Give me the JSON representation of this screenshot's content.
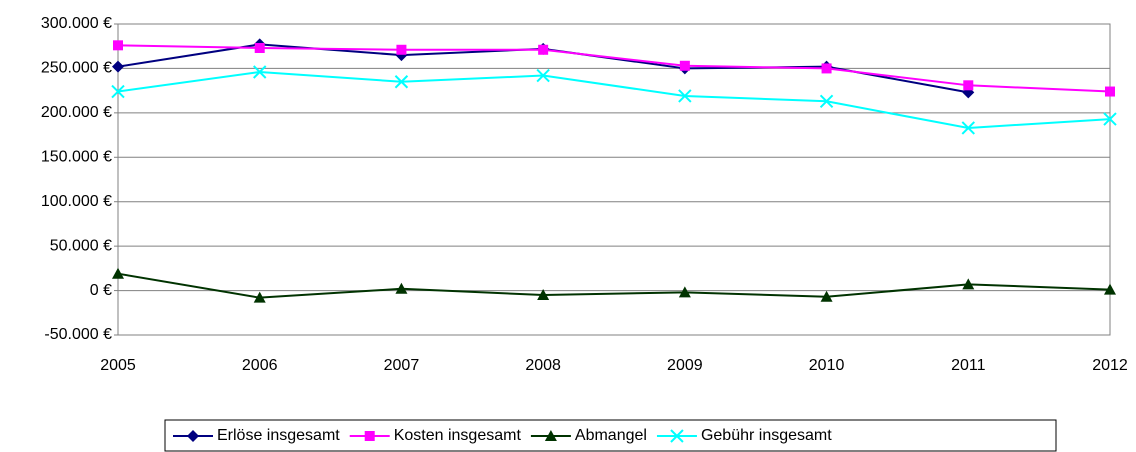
{
  "chart_data": {
    "type": "line",
    "categories": [
      "2005",
      "2006",
      "2007",
      "2008",
      "2009",
      "2010",
      "2011",
      "2012"
    ],
    "series": [
      {
        "name": "Erlöse insgesamt",
        "color": "#000080",
        "marker": "diamond",
        "values": [
          252000,
          277000,
          265000,
          272000,
          250000,
          252000,
          223000,
          null
        ]
      },
      {
        "name": "Kosten insgesamt",
        "color": "#ff00ff",
        "marker": "square",
        "values": [
          276000,
          273000,
          271000,
          271000,
          253000,
          250000,
          231000,
          224000
        ]
      },
      {
        "name": "Abmangel",
        "color": "#003300",
        "marker": "triangle",
        "values": [
          19000,
          -8000,
          2000,
          -5000,
          -2000,
          -7000,
          7000,
          1000
        ]
      },
      {
        "name": "Gebühr insgesamt",
        "color": "#00ffff",
        "marker": "x",
        "values": [
          224000,
          246000,
          235000,
          242000,
          219000,
          213000,
          183000,
          193000
        ]
      }
    ],
    "ylim": [
      -50000,
      300000
    ],
    "yticks": [
      {
        "value": -50000,
        "label": "-50.000 €"
      },
      {
        "value": 0,
        "label": "0 €"
      },
      {
        "value": 50000,
        "label": "50.000 €"
      },
      {
        "value": 100000,
        "label": "100.000 €"
      },
      {
        "value": 150000,
        "label": "150.000 €"
      },
      {
        "value": 200000,
        "label": "200.000 €"
      },
      {
        "value": 250000,
        "label": "250.000 €"
      },
      {
        "value": 300000,
        "label": "300.000 €"
      }
    ],
    "grid": true,
    "legend": "bottom"
  }
}
